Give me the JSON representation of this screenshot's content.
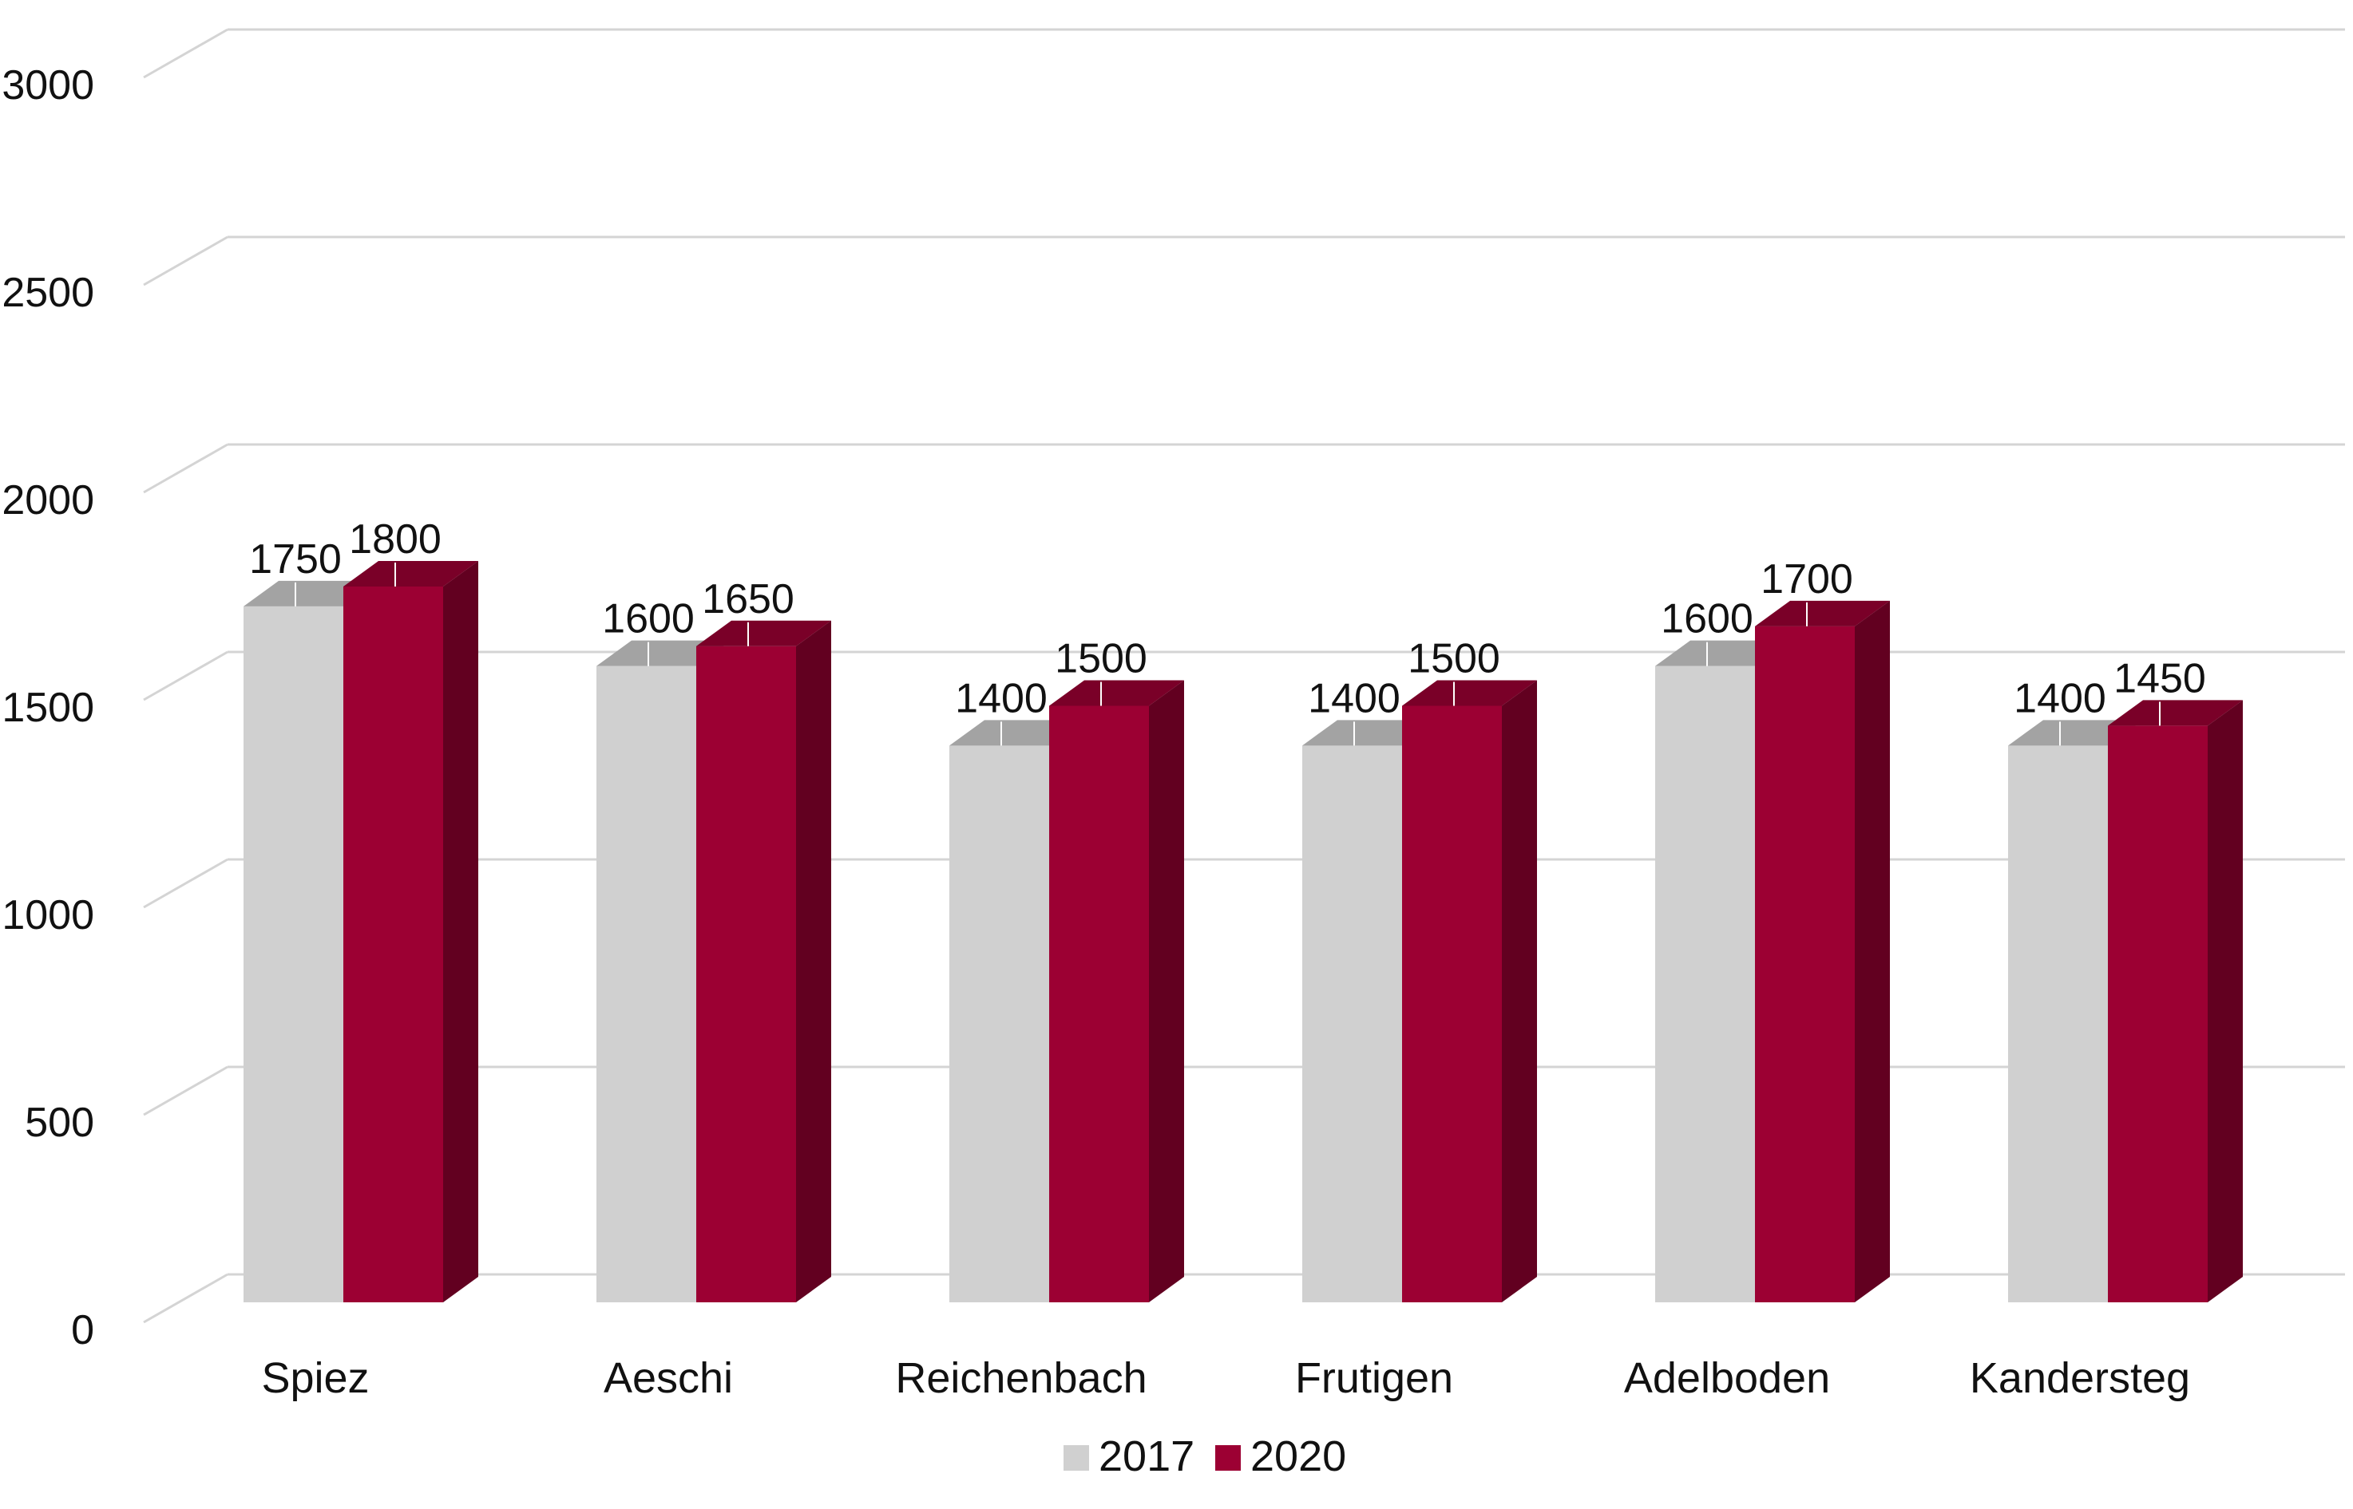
{
  "chart_data": {
    "type": "bar",
    "style": "3d-clustered-column",
    "title": "",
    "xlabel": "",
    "ylabel": "",
    "categories": [
      "Spiez",
      "Aeschi",
      "Reichenbach",
      "Frutigen",
      "Adelboden",
      "Kandersteg"
    ],
    "series": [
      {
        "name": "2017",
        "values": [
          1750,
          1600,
          1400,
          1400,
          1600,
          1400
        ],
        "color": "#D0D0D0",
        "top_color": "#A3A3A3",
        "side_color": "#B8B8B8"
      },
      {
        "name": "2020",
        "values": [
          1800,
          1650,
          1500,
          1500,
          1700,
          1450
        ],
        "color": "#9C0033",
        "top_color": "#7A0028",
        "side_color": "#620020"
      }
    ],
    "ylim": [
      0,
      3000
    ],
    "yticks": [
      0,
      500,
      1000,
      1500,
      2000,
      2500,
      3000
    ],
    "grid": true,
    "legend_position": "bottom",
    "data_labels": true
  }
}
